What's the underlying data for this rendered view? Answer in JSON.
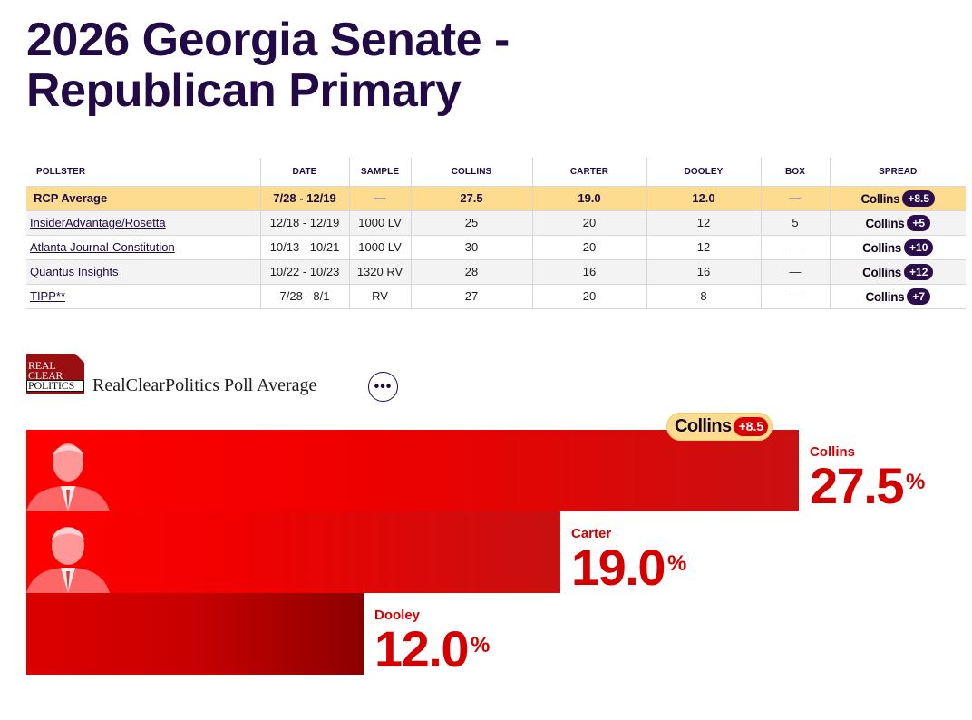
{
  "page": {
    "title_line1": "2026 Georgia Senate -",
    "title_line2": "Republican Primary"
  },
  "table": {
    "headers": [
      "POLLSTER",
      "DATE",
      "SAMPLE",
      "COLLINS",
      "CARTER",
      "DOOLEY",
      "BOX",
      "SPREAD"
    ],
    "rcp_average": {
      "pollster": "RCP Average",
      "date": "7/28 - 12/19",
      "sample": "—",
      "collins": "27.5",
      "carter": "19.0",
      "dooley": "12.0",
      "box": "—",
      "spread_name": "Collins",
      "spread_value": "+8.5"
    },
    "rows": [
      {
        "pollster": "InsiderAdvantage/Rosetta",
        "date": "12/18 - 12/19",
        "sample": "1000 LV",
        "collins": "25",
        "carter": "20",
        "dooley": "12",
        "box": "5",
        "spread_name": "Collins",
        "spread_value": "+5"
      },
      {
        "pollster": "Atlanta Journal-Constitution",
        "date": "10/13 - 10/21",
        "sample": "1000 LV",
        "collins": "30",
        "carter": "20",
        "dooley": "12",
        "box": "—",
        "spread_name": "Collins",
        "spread_value": "+10"
      },
      {
        "pollster": "Quantus Insights",
        "date": "10/22 - 10/23",
        "sample": "1320 RV",
        "collins": "28",
        "carter": "16",
        "dooley": "16",
        "box": "—",
        "spread_name": "Collins",
        "spread_value": "+12"
      },
      {
        "pollster": "TIPP**",
        "date": "7/28 - 8/1",
        "sample": "RV",
        "collins": "27",
        "carter": "20",
        "dooley": "8",
        "box": "—",
        "spread_name": "Collins",
        "spread_value": "+7"
      }
    ]
  },
  "average_section": {
    "logo_line1": "REAL",
    "logo_line2": "CLEAR",
    "logo_line3": "POLITICS",
    "title": "RealClearPolitics Poll Average",
    "more_icon": "ellipsis-icon",
    "more_label": "•••"
  },
  "chart_data": {
    "type": "bar",
    "orientation": "horizontal",
    "categories": [
      "Collins",
      "Carter",
      "Dooley"
    ],
    "values": [
      27.5,
      19.0,
      12.0
    ],
    "value_labels": [
      "27.5",
      "19.0",
      "12.0"
    ],
    "unit": "%",
    "leader_badge": {
      "name": "Collins",
      "spread": "+8.5"
    },
    "colors": {
      "bar": "#ff0000",
      "label": "#d40000",
      "badge_bg": "#fddc8f",
      "badge_spread": "#d80000"
    }
  }
}
